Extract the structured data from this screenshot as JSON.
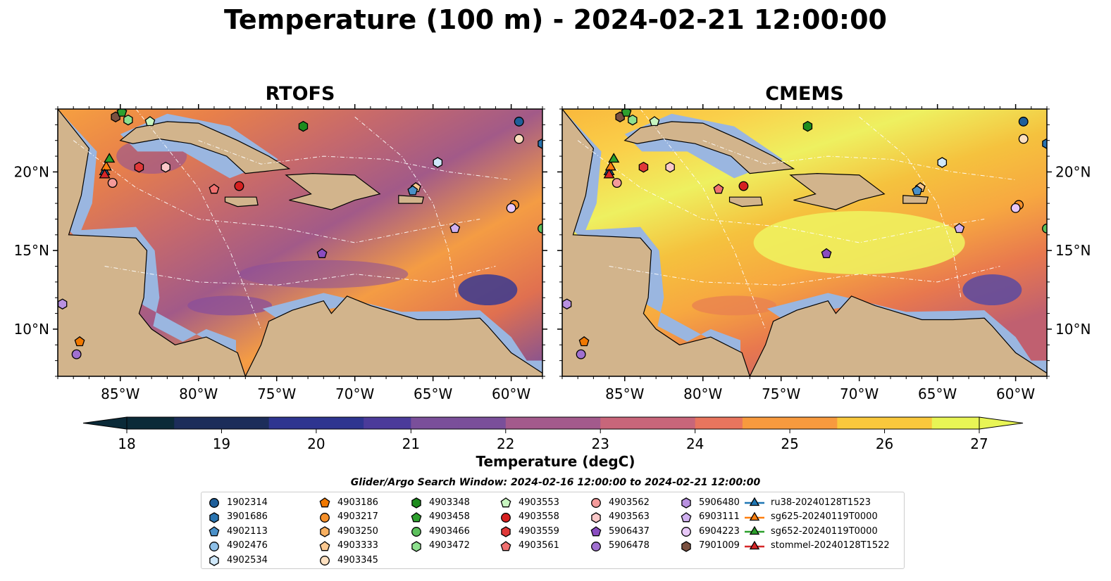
{
  "title": "Temperature (100 m) - 2024-02-21 12:00:00",
  "panels": [
    {
      "title": "RTOFS",
      "variant": "rtofs"
    },
    {
      "title": "CMEMS",
      "variant": "cmems"
    }
  ],
  "map": {
    "lon_range": [
      -89,
      -58
    ],
    "lat_range": [
      7,
      24
    ],
    "lon_ticks": [
      "85°W",
      "80°W",
      "75°W",
      "70°W",
      "65°W",
      "60°W"
    ],
    "lon_tick_values": [
      -85,
      -80,
      -75,
      -70,
      -65,
      -60
    ],
    "lat_ticks": [
      "20°N",
      "15°N",
      "10°N"
    ],
    "lat_tick_values": [
      20,
      15,
      10
    ],
    "colors": {
      "land": "#d2b48c",
      "shelf": "#9ab6e0",
      "ocean_warm": "#f5a742",
      "ocean_deep": "#0a2230"
    }
  },
  "colorbar": {
    "label": "Temperature (degC)",
    "min": 18,
    "max": 27,
    "ticks": [
      "18",
      "19",
      "20",
      "21",
      "22",
      "23",
      "24",
      "25",
      "26",
      "27"
    ],
    "stops": [
      "#0b2a38",
      "#1c2d5a",
      "#2e3590",
      "#4b3b9a",
      "#7a4f9a",
      "#a35a8c",
      "#c8667a",
      "#e8755e",
      "#f79a3e",
      "#f9c83c",
      "#e8f555"
    ]
  },
  "legend": {
    "title": "Glider/Argo Search Window: 2024-02-16 12:00:00 to 2024-02-21 12:00:00",
    "columns": [
      [
        {
          "label": "1902314",
          "marker": "circle",
          "color": "#1f5f9a"
        },
        {
          "label": "3901686",
          "marker": "hexagon",
          "color": "#2a74b0"
        },
        {
          "label": "4902113",
          "marker": "pentagon",
          "color": "#4a90c8"
        },
        {
          "label": "4902476",
          "marker": "circle",
          "color": "#8ec0e8"
        },
        {
          "label": "4902534",
          "marker": "hexagon",
          "color": "#cfe8fa"
        }
      ],
      [
        {
          "label": "4903186",
          "marker": "pentagon",
          "color": "#f07800"
        },
        {
          "label": "4903217",
          "marker": "circle",
          "color": "#f5902a"
        },
        {
          "label": "4903250",
          "marker": "hexagon",
          "color": "#f8b060"
        },
        {
          "label": "4903333",
          "marker": "pentagon",
          "color": "#fbc890"
        },
        {
          "label": "4903345",
          "marker": "circle",
          "color": "#fde0c0"
        }
      ],
      [
        {
          "label": "4903348",
          "marker": "hexagon",
          "color": "#1e8c1e"
        },
        {
          "label": "4903458",
          "marker": "pentagon",
          "color": "#2ea02e"
        },
        {
          "label": "4903466",
          "marker": "circle",
          "color": "#5cc05c"
        },
        {
          "label": "4903472",
          "marker": "hexagon",
          "color": "#8ee08e"
        }
      ],
      [
        {
          "label": "4903553",
          "marker": "pentagon",
          "color": "#c8f5c0"
        },
        {
          "label": "4903558",
          "marker": "circle",
          "color": "#d62020"
        },
        {
          "label": "4903559",
          "marker": "hexagon",
          "color": "#e03838"
        },
        {
          "label": "4903561",
          "marker": "pentagon",
          "color": "#f07070"
        }
      ],
      [
        {
          "label": "4903562",
          "marker": "circle",
          "color": "#f49a9a"
        },
        {
          "label": "4903563",
          "marker": "hexagon",
          "color": "#fac8c8"
        },
        {
          "label": "5906437",
          "marker": "pentagon",
          "color": "#8a4cc0"
        },
        {
          "label": "5906478",
          "marker": "circle",
          "color": "#a070d0"
        }
      ],
      [
        {
          "label": "5906480",
          "marker": "hexagon",
          "color": "#b890e0"
        },
        {
          "label": "6903111",
          "marker": "pentagon",
          "color": "#d0b0f0"
        },
        {
          "label": "6904223",
          "marker": "circle",
          "color": "#e8c8f8"
        },
        {
          "label": "7901009",
          "marker": "hexagon",
          "color": "#7a5040"
        }
      ],
      [
        {
          "label": "ru38-20240128T1523",
          "marker": "triangle-line",
          "color": "#1f77b4"
        },
        {
          "label": "sg625-20240119T0000",
          "marker": "triangle-line",
          "color": "#ff7f0e"
        },
        {
          "label": "sg652-20240119T0000",
          "marker": "triangle-line",
          "color": "#2ca02c"
        },
        {
          "label": "stommel-20240128T1522",
          "marker": "triangle-line",
          "color": "#d62728"
        }
      ]
    ]
  },
  "map_markers": [
    {
      "id": "1902314",
      "lon": -59.5,
      "lat": 23.2,
      "marker": "circle",
      "color": "#1f5f9a"
    },
    {
      "id": "4903345",
      "lon": -59.5,
      "lat": 22.1,
      "marker": "circle",
      "color": "#fde0c0"
    },
    {
      "id": "3901686",
      "lon": -58.0,
      "lat": 21.8,
      "marker": "hexagon",
      "color": "#2a74b0"
    },
    {
      "id": "4902534",
      "lon": -64.7,
      "lat": 20.6,
      "marker": "hexagon",
      "color": "#cfe8fa"
    },
    {
      "id": "4903348",
      "lon": -73.3,
      "lat": 22.9,
      "marker": "hexagon",
      "color": "#1e8c1e"
    },
    {
      "id": "4903553",
      "lon": -83.1,
      "lat": 23.2,
      "marker": "pentagon",
      "color": "#c8f5c0"
    },
    {
      "id": "4903472",
      "lon": -84.5,
      "lat": 23.3,
      "marker": "hexagon",
      "color": "#8ee08e"
    },
    {
      "id": "7901009",
      "lon": -85.3,
      "lat": 23.5,
      "marker": "hexagon",
      "color": "#7a5040"
    },
    {
      "id": "4903458",
      "lon": -84.9,
      "lat": 23.8,
      "marker": "pentagon",
      "color": "#2ea02e"
    },
    {
      "id": "4903559",
      "lon": -83.8,
      "lat": 20.3,
      "marker": "hexagon",
      "color": "#e03838"
    },
    {
      "id": "4903563",
      "lon": -82.1,
      "lat": 20.3,
      "marker": "hexagon",
      "color": "#fac8c8"
    },
    {
      "id": "4903561",
      "lon": -79.0,
      "lat": 18.9,
      "marker": "pentagon",
      "color": "#f07070"
    },
    {
      "id": "4903558",
      "lon": -77.4,
      "lat": 19.1,
      "marker": "circle",
      "color": "#d62020"
    },
    {
      "id": "4903562",
      "lon": -85.5,
      "lat": 19.3,
      "marker": "circle",
      "color": "#f49a9a"
    },
    {
      "id": "ru38-20240128T1523",
      "lon": -86.0,
      "lat": 20.0,
      "marker": "triangle",
      "color": "#1f77b4"
    },
    {
      "id": "sg625-20240119T0000",
      "lon": -85.9,
      "lat": 20.3,
      "marker": "triangle",
      "color": "#ff7f0e"
    },
    {
      "id": "sg652-20240119T0000",
      "lon": -85.7,
      "lat": 20.8,
      "marker": "triangle",
      "color": "#2ca02c"
    },
    {
      "id": "stommel-20240128T1522",
      "lon": -86.0,
      "lat": 19.8,
      "marker": "triangle",
      "color": "#d62728"
    },
    {
      "id": "4903333",
      "lon": -66.1,
      "lat": 19.0,
      "marker": "pentagon",
      "color": "#fbc890"
    },
    {
      "id": "4902113",
      "lon": -66.3,
      "lat": 18.8,
      "marker": "pentagon",
      "color": "#4a90c8"
    },
    {
      "id": "4903217",
      "lon": -59.8,
      "lat": 17.9,
      "marker": "circle",
      "color": "#f5902a"
    },
    {
      "id": "6904223",
      "lon": -60.0,
      "lat": 17.7,
      "marker": "circle",
      "color": "#e8c8f8"
    },
    {
      "id": "6903111",
      "lon": -63.6,
      "lat": 16.4,
      "marker": "pentagon",
      "color": "#d0b0f0"
    },
    {
      "id": "4903466",
      "lon": -58.0,
      "lat": 16.4,
      "marker": "circle",
      "color": "#5cc05c"
    },
    {
      "id": "5906437",
      "lon": -72.1,
      "lat": 14.8,
      "marker": "pentagon",
      "color": "#8a4cc0"
    },
    {
      "id": "5906480",
      "lon": -88.7,
      "lat": 11.6,
      "marker": "hexagon",
      "color": "#b890e0"
    },
    {
      "id": "4903186",
      "lon": -87.6,
      "lat": 9.2,
      "marker": "pentagon",
      "color": "#f07800"
    },
    {
      "id": "5906478",
      "lon": -87.8,
      "lat": 8.4,
      "marker": "circle",
      "color": "#a070d0"
    }
  ]
}
